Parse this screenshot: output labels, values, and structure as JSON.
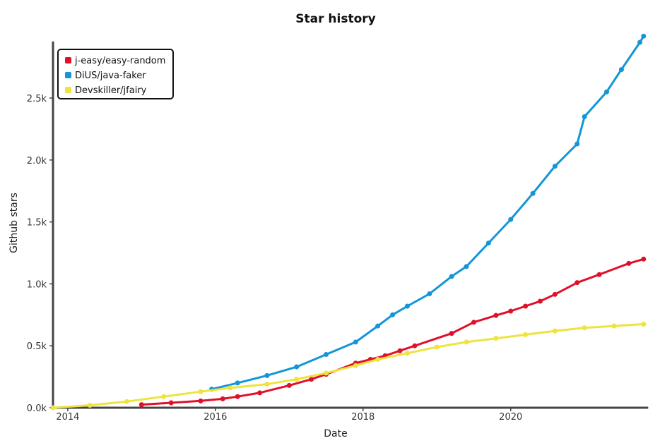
{
  "chart_data": {
    "type": "line",
    "title": "Star history",
    "xlabel": "Date",
    "ylabel": "Github stars",
    "x_ticks": [
      "2014",
      "2016",
      "2018",
      "2020"
    ],
    "y_ticks": [
      "0.0k",
      "0.5k",
      "1.0k",
      "1.5k",
      "2.0k",
      "2.5k"
    ],
    "xlim": [
      2013.8,
      2021.85
    ],
    "ylim": [
      0,
      2950
    ],
    "legend_position": "top-left",
    "series": [
      {
        "name": "j-easy/easy-random",
        "color": "#e0102a",
        "x": [
          2015.0,
          2015.4,
          2015.8,
          2016.1,
          2016.3,
          2016.6,
          2017.0,
          2017.3,
          2017.5,
          2017.9,
          2018.1,
          2018.3,
          2018.5,
          2018.7,
          2019.2,
          2019.5,
          2019.8,
          2020.0,
          2020.2,
          2020.4,
          2020.6,
          2020.9,
          2021.2,
          2021.6,
          2021.8
        ],
        "y": [
          25,
          40,
          55,
          72,
          90,
          120,
          180,
          230,
          270,
          360,
          390,
          420,
          460,
          500,
          600,
          690,
          745,
          780,
          820,
          860,
          915,
          1010,
          1075,
          1165,
          1200
        ]
      },
      {
        "name": "DiUS/java-faker",
        "color": "#1296d9",
        "x": [
          2015.95,
          2016.3,
          2016.7,
          2017.1,
          2017.5,
          2017.9,
          2018.2,
          2018.4,
          2018.6,
          2018.9,
          2019.2,
          2019.4,
          2019.7,
          2020.0,
          2020.3,
          2020.6,
          2020.9,
          2021.0,
          2021.3,
          2021.5,
          2021.75,
          2021.8
        ],
        "y": [
          150,
          200,
          260,
          330,
          430,
          530,
          660,
          750,
          820,
          920,
          1060,
          1140,
          1330,
          1520,
          1730,
          1950,
          2130,
          2350,
          2550,
          2730,
          2950,
          3000
        ]
      },
      {
        "name": "Devskiller/jfairy",
        "color": "#eee33f",
        "x": [
          2013.8,
          2014.3,
          2014.8,
          2015.3,
          2015.8,
          2016.2,
          2016.7,
          2017.1,
          2017.5,
          2017.9,
          2018.2,
          2018.6,
          2019.0,
          2019.4,
          2019.8,
          2020.2,
          2020.6,
          2021.0,
          2021.4,
          2021.8
        ],
        "y": [
          0,
          20,
          50,
          90,
          130,
          160,
          190,
          230,
          280,
          340,
          390,
          440,
          490,
          530,
          560,
          590,
          620,
          645,
          660,
          675
        ]
      }
    ]
  }
}
